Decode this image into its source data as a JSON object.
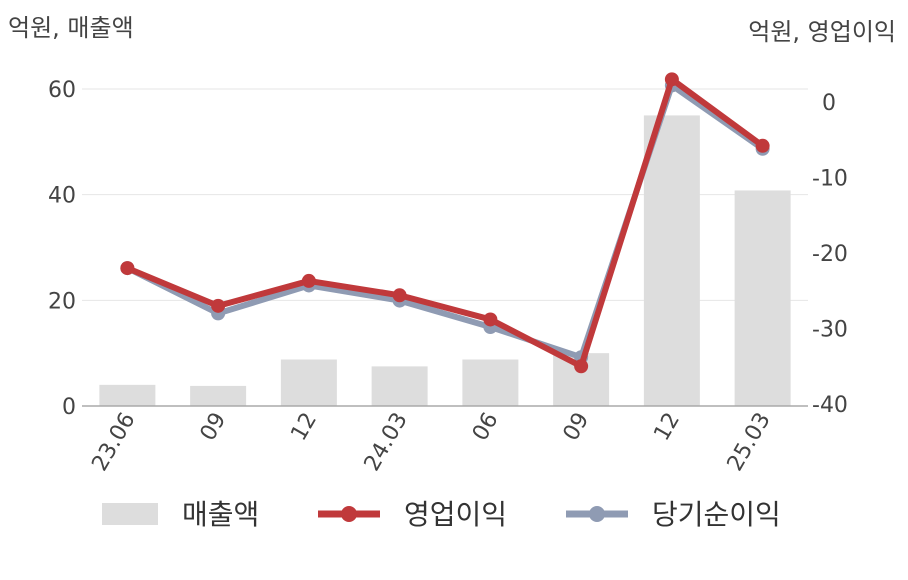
{
  "chart_data": {
    "type": "bar+line",
    "categories": [
      "23.06",
      "09",
      "12",
      "24.03",
      "06",
      "09",
      "12",
      "25.03"
    ],
    "left_axis": {
      "unit_label": "억원, 매출액",
      "ticks": [
        "0",
        "20",
        "40",
        "60"
      ],
      "range": [
        0,
        65
      ]
    },
    "right_axis": {
      "unit_label": "억원, 영업이익",
      "ticks": [
        "-40",
        "-30",
        "-20",
        "-10",
        "0"
      ],
      "range": [
        -40,
        3.5
      ]
    },
    "series": [
      {
        "name": "매출액",
        "kind": "bar",
        "axis": "left",
        "color": "#dddddd",
        "values": [
          4.0,
          3.8,
          8.8,
          7.5,
          8.8,
          10.0,
          55.0,
          40.8
        ]
      },
      {
        "name": "영업이익",
        "kind": "line",
        "axis": "right",
        "color": "#c0393b",
        "values": [
          -22.0,
          -27.0,
          -23.7,
          -25.6,
          -28.8,
          -35.0,
          3.0,
          -5.8
        ]
      },
      {
        "name": "당기순이익",
        "kind": "line",
        "axis": "right",
        "color": "#8f9bb3",
        "values": [
          -22.0,
          -28.0,
          -24.3,
          -26.3,
          -29.8,
          -33.8,
          2.2,
          -6.2
        ]
      }
    ],
    "grid": true,
    "legend_position": "bottom"
  }
}
